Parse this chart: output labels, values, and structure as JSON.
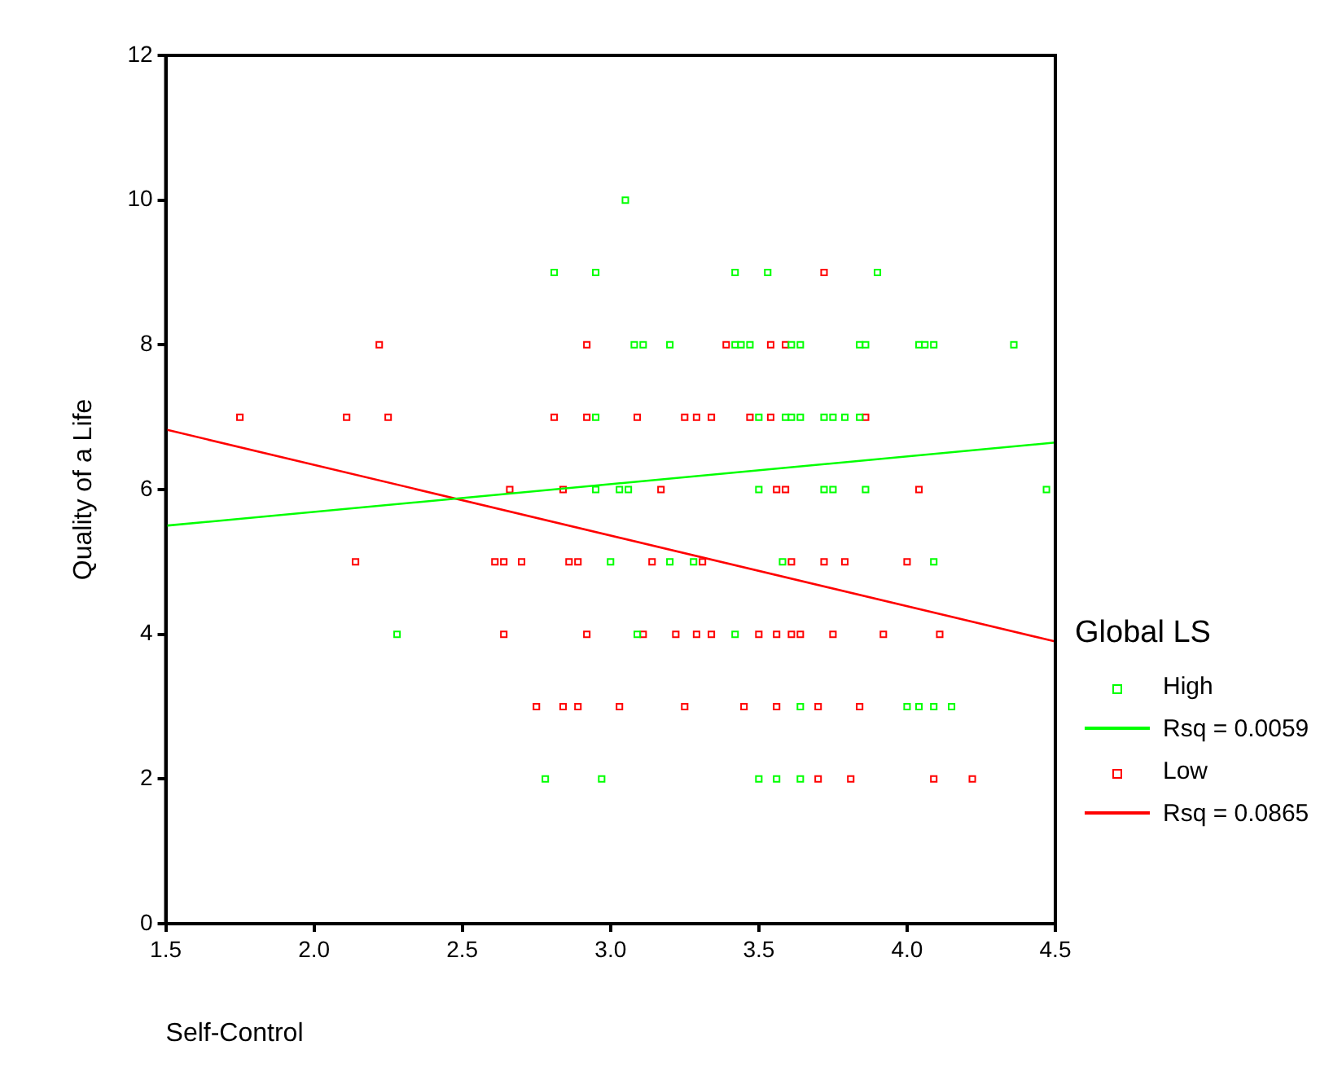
{
  "chart_data": {
    "type": "scatter",
    "xlabel": "Self-Control",
    "ylabel": "Quality of a Life",
    "legend_title": "Global LS",
    "legend": "right",
    "grid": false,
    "xlim": [
      1.5,
      4.5
    ],
    "xticks": [
      {
        "value": 1.5,
        "label": "1.5"
      },
      {
        "value": 2,
        "label": "2.0"
      },
      {
        "value": 2.5,
        "label": "2.5"
      },
      {
        "value": 3,
        "label": "3.0"
      },
      {
        "value": 3.5,
        "label": "3.5"
      },
      {
        "value": 4,
        "label": "4.0"
      },
      {
        "value": 4.5,
        "label": "4.5"
      }
    ],
    "ylim": [
      0,
      12
    ],
    "yticks": [
      0,
      2,
      4,
      6,
      8,
      10,
      12
    ],
    "series": [
      {
        "name": "High",
        "marker": "square",
        "color": "#00ff00",
        "x": [
          3.05,
          2.81,
          2.95,
          3.42,
          3.53,
          3.9,
          3.08,
          3.11,
          3.2,
          3.42,
          3.44,
          3.47,
          3.61,
          3.64,
          3.84,
          3.86,
          4.04,
          4.06,
          4.09,
          4.36,
          2.95,
          3.5,
          3.59,
          3.61,
          3.64,
          3.72,
          3.75,
          3.79,
          3.84,
          2.95,
          3.03,
          3.06,
          3.5,
          3.72,
          3.75,
          3.86,
          4.47,
          3.0,
          3.2,
          3.28,
          3.58,
          4.09,
          2.28,
          3.09,
          3.42,
          3.64,
          4.0,
          4.04,
          4.09,
          4.15,
          2.78,
          2.97,
          3.5,
          3.56,
          3.64
        ],
        "values": [
          10,
          9,
          9,
          9,
          9,
          9,
          8,
          8,
          8,
          8,
          8,
          8,
          8,
          8,
          8,
          8,
          8,
          8,
          8,
          8,
          7,
          7,
          7,
          7,
          7,
          7,
          7,
          7,
          7,
          6,
          6,
          6,
          6,
          6,
          6,
          6,
          6,
          5,
          5,
          5,
          5,
          5,
          4,
          4,
          4,
          3,
          3,
          3,
          3,
          3,
          2,
          2,
          2,
          2,
          2
        ]
      },
      {
        "name": "Rsq = 0.0059",
        "type": "line",
        "marker": "none",
        "color": "#00ff00",
        "x": [
          1.5,
          4.5
        ],
        "values": [
          5.5,
          6.65
        ]
      },
      {
        "name": "Low",
        "marker": "square",
        "color": "#ff0000",
        "x": [
          3.72,
          2.22,
          2.92,
          3.39,
          3.54,
          3.59,
          1.75,
          2.11,
          2.25,
          2.81,
          2.92,
          3.09,
          3.25,
          3.29,
          3.34,
          3.47,
          3.54,
          3.86,
          2.66,
          2.84,
          3.17,
          3.56,
          3.59,
          4.04,
          2.14,
          2.61,
          2.64,
          2.7,
          2.86,
          2.89,
          3.14,
          3.31,
          3.61,
          3.72,
          3.79,
          4.0,
          2.64,
          2.92,
          3.11,
          3.22,
          3.29,
          3.34,
          3.5,
          3.56,
          3.61,
          3.64,
          3.75,
          3.92,
          4.11,
          2.75,
          2.84,
          2.89,
          3.03,
          3.25,
          3.45,
          3.56,
          3.7,
          3.84,
          3.7,
          3.81,
          4.09,
          4.22
        ],
        "values": [
          9,
          8,
          8,
          8,
          8,
          8,
          7,
          7,
          7,
          7,
          7,
          7,
          7,
          7,
          7,
          7,
          7,
          7,
          6,
          6,
          6,
          6,
          6,
          6,
          5,
          5,
          5,
          5,
          5,
          5,
          5,
          5,
          5,
          5,
          5,
          5,
          4,
          4,
          4,
          4,
          4,
          4,
          4,
          4,
          4,
          4,
          4,
          4,
          4,
          3,
          3,
          3,
          3,
          3,
          3,
          3,
          3,
          3,
          2,
          2,
          2,
          2
        ]
      },
      {
        "name": "Rsq = 0.0865",
        "type": "line",
        "marker": "none",
        "color": "#ff0000",
        "x": [
          1.5,
          4.5
        ],
        "values": [
          6.83,
          3.9
        ]
      }
    ]
  }
}
